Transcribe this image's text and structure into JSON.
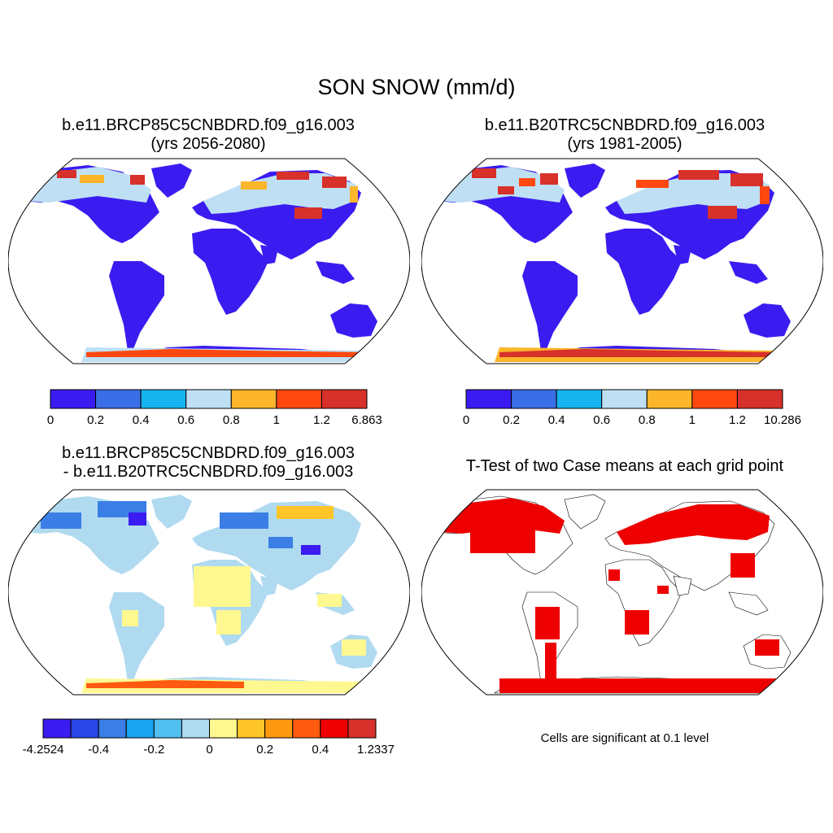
{
  "title": "SON SNOW (mm/d)",
  "colors": {
    "land_base": "#3a1cf0",
    "ocean": "#ffffff",
    "outline": "#000000",
    "significant": "#ee0000"
  },
  "panels": [
    {
      "name": "future-case",
      "title_line1": "b.e11.BRCP85C5CNBDRD.f09_g16.003",
      "title_line2": "(yrs 2056-2080)",
      "colorbar": {
        "colors": [
          "#3a1cf0",
          "#3a6ee6",
          "#18b4f0",
          "#bfe0f4",
          "#fdb52a",
          "#ff4810",
          "#d8302a"
        ],
        "labels": [
          "0",
          "0.2",
          "0.4",
          "0.6",
          "0.8",
          "1",
          "1.2",
          "6.863"
        ]
      }
    },
    {
      "name": "historical-case",
      "title_line1": "b.e11.B20TRC5CNBDRD.f09_g16.003",
      "title_line2": "(yrs 1981-2005)",
      "colorbar": {
        "colors": [
          "#3a1cf0",
          "#3a6ee6",
          "#18b4f0",
          "#bfe0f4",
          "#fdb52a",
          "#ff4810",
          "#d8302a"
        ],
        "labels": [
          "0",
          "0.2",
          "0.4",
          "0.6",
          "0.8",
          "1",
          "1.2",
          "10.286"
        ]
      }
    },
    {
      "name": "difference",
      "title_line1": "b.e11.BRCP85C5CNBDRD.f09_g16.003",
      "title_line2": "- b.e11.B20TRC5CNBDRD.f09_g16.003",
      "colorbar": {
        "colors": [
          "#3a1cf0",
          "#2a48e8",
          "#3a7ee6",
          "#18a4f0",
          "#50c0f0",
          "#b0daf0",
          "#fff890",
          "#fdc52a",
          "#ff9a10",
          "#ff5a10",
          "#ee0000",
          "#d8302a"
        ],
        "labels": [
          "-4.2524",
          "-0.4",
          "-0.2",
          "0",
          "0.2",
          "0.4",
          "1.2337"
        ]
      }
    },
    {
      "name": "t-test",
      "title_line1": "T-Test of two Case means at each grid point",
      "note": "Cells are significant at 0.1 level"
    }
  ]
}
